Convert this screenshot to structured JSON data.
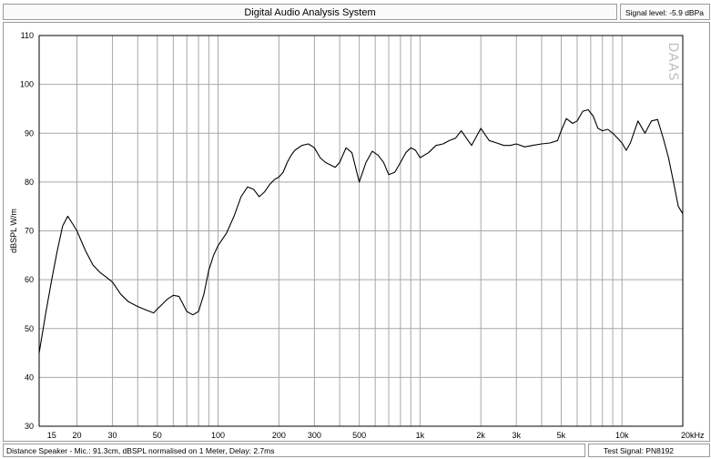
{
  "header": {
    "title": "Digital Audio Analysis System",
    "signal_level": "Signal level: -5.9 dBPa"
  },
  "status": {
    "left": "Distance Speaker - Mic.: 91.3cm, dBSPL normalised on 1 Meter, Delay: 2.7ms",
    "right": "Test Signal: PN8192"
  },
  "watermark": "DAAS",
  "chart_data": {
    "type": "line",
    "title": "",
    "xlabel": "",
    "ylabel": "dBSPL W/m",
    "x_scale": "log",
    "xlim": [
      13,
      20000
    ],
    "ylim": [
      30,
      110
    ],
    "grid": true,
    "line_color": "#000000",
    "x_tick_labels": [
      {
        "value": 15,
        "label": "15"
      },
      {
        "value": 20,
        "label": "20"
      },
      {
        "value": 30,
        "label": "30"
      },
      {
        "value": 50,
        "label": "50"
      },
      {
        "value": 100,
        "label": "100"
      },
      {
        "value": 200,
        "label": "200"
      },
      {
        "value": 300,
        "label": "300"
      },
      {
        "value": 500,
        "label": "500"
      },
      {
        "value": 1000,
        "label": "1k"
      },
      {
        "value": 2000,
        "label": "2k"
      },
      {
        "value": 3000,
        "label": "3k"
      },
      {
        "value": 5000,
        "label": "5k"
      },
      {
        "value": 10000,
        "label": "10k"
      },
      {
        "value": 20000,
        "label": "20kHz"
      }
    ],
    "y_ticks": [
      30,
      40,
      50,
      60,
      70,
      80,
      90,
      100,
      110
    ],
    "series": [
      {
        "x": [
          13,
          14,
          15,
          16,
          17,
          18,
          19,
          20,
          22,
          24,
          26,
          28,
          30,
          33,
          36,
          40,
          44,
          48,
          50,
          53,
          56,
          60,
          64,
          67,
          70,
          75,
          80,
          85,
          90,
          95,
          100,
          110,
          120,
          130,
          140,
          150,
          160,
          170,
          180,
          190,
          200,
          210,
          220,
          230,
          240,
          260,
          280,
          300,
          320,
          340,
          360,
          380,
          400,
          430,
          460,
          500,
          540,
          580,
          620,
          660,
          700,
          750,
          800,
          850,
          900,
          950,
          1000,
          1100,
          1200,
          1300,
          1400,
          1500,
          1600,
          1800,
          2000,
          2200,
          2400,
          2600,
          2800,
          3000,
          3300,
          3600,
          4000,
          4400,
          4800,
          5000,
          5300,
          5700,
          6000,
          6400,
          6800,
          7200,
          7600,
          8000,
          8500,
          9000,
          9500,
          10000,
          10500,
          11000,
          12000,
          13000,
          14000,
          15000,
          16000,
          17000,
          18000,
          19000,
          20000
        ],
        "y": [
          45,
          53,
          60,
          66,
          71,
          73,
          71.5,
          70,
          66,
          63,
          61.5,
          60.5,
          59.5,
          57,
          55.5,
          54.5,
          53.8,
          53.2,
          54,
          55,
          56,
          56.8,
          56.6,
          55,
          53.5,
          52.8,
          53.5,
          57,
          62,
          65,
          67,
          69.5,
          73,
          77,
          79,
          78.5,
          77,
          78,
          79.5,
          80.5,
          81,
          82,
          84,
          85.5,
          86.5,
          87.5,
          87.8,
          87,
          85,
          84,
          83.5,
          83,
          84,
          87,
          86,
          80,
          84,
          86.3,
          85.5,
          84,
          81.5,
          82,
          84,
          86,
          87,
          86.5,
          85,
          86,
          87.5,
          87.8,
          88.5,
          89,
          90.5,
          87.5,
          91,
          88.5,
          88,
          87.5,
          87.5,
          87.8,
          87.2,
          87.5,
          87.8,
          88,
          88.5,
          90.5,
          93,
          92,
          92.5,
          94.5,
          94.8,
          93.5,
          91,
          90.5,
          90.8,
          90,
          89,
          88,
          86.5,
          88,
          92.5,
          90,
          92.5,
          92.8,
          89,
          85,
          80,
          75,
          73.5
        ]
      }
    ]
  }
}
